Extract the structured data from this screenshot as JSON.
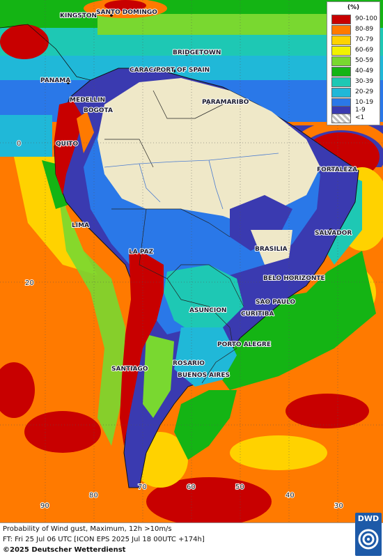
{
  "legend": {
    "unit": "(%)",
    "items": [
      {
        "label": "90-100",
        "color": "#c80000"
      },
      {
        "label": "80-89",
        "color": "#ff7a00"
      },
      {
        "label": "70-79",
        "color": "#ffd200"
      },
      {
        "label": "60-69",
        "color": "#f2f200"
      },
      {
        "label": "50-59",
        "color": "#79d830"
      },
      {
        "label": "40-49",
        "color": "#14b414"
      },
      {
        "label": "30-39",
        "color": "#1ec8b4"
      },
      {
        "label": "20-29",
        "color": "#20b8d8"
      },
      {
        "label": "10-19",
        "color": "#2a78e8"
      },
      {
        "label": "1-9",
        "color": "#3a3ab0"
      },
      {
        "label": "<1",
        "color": "#bdbdbd"
      }
    ]
  },
  "cities": [
    {
      "name": "KINGSTON"
    },
    {
      "name": "SANTO DOMINGO"
    },
    {
      "name": "BRIDGETOWN"
    },
    {
      "name": "CARACAS"
    },
    {
      "name": "PORT OF SPAIN"
    },
    {
      "name": "PANAMA"
    },
    {
      "name": "MEDELLIN"
    },
    {
      "name": "BOGOTA"
    },
    {
      "name": "PARAMARIBO"
    },
    {
      "name": "QUITO"
    },
    {
      "name": "FORTALEZA"
    },
    {
      "name": "LIMA"
    },
    {
      "name": "SALVADOR"
    },
    {
      "name": "BRASILIA"
    },
    {
      "name": "LA PAZ"
    },
    {
      "name": "BELO HORIZONTE"
    },
    {
      "name": "SAO PAULO"
    },
    {
      "name": "ASUNCION"
    },
    {
      "name": "CURITIBA"
    },
    {
      "name": "PORTO ALEGRE"
    },
    {
      "name": "ROSARIO"
    },
    {
      "name": "SANTIAGO"
    },
    {
      "name": "BUENOS AIRES"
    }
  ],
  "grid_labels": {
    "lat": [
      "0",
      "20"
    ],
    "lon": [
      "90",
      "80",
      "70",
      "60",
      "50",
      "40",
      "30"
    ]
  },
  "footer": {
    "line1": "Probability of Wind gust, Maximum, 12h >10m/s",
    "line2": "FT: Fri 25 Jul 06 UTC [ICON EPS 2025 Jul 18 00UTC +174h]",
    "line3": "©2025 Deutscher Wetterdienst"
  },
  "logo": {
    "text": "DWD"
  }
}
